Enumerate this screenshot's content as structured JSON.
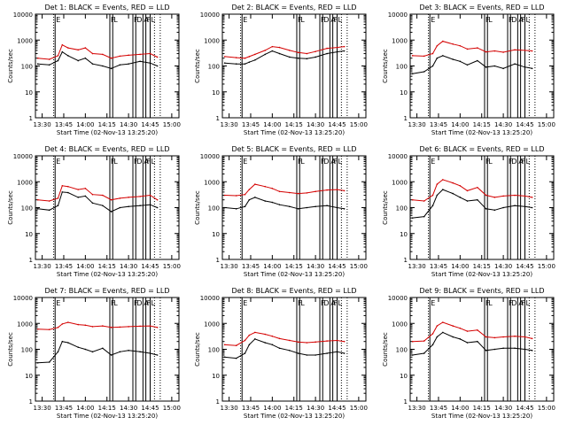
{
  "colors": {
    "events": "#000000",
    "lld": "#d40000",
    "background": "#ffffff",
    "axes": "#000000"
  },
  "x_ticks": [
    "13:30",
    "13:45",
    "14:00",
    "14:15",
    "14:30",
    "14:45",
    "15:00"
  ],
  "x_label": "Start Time (02-Nov-13 13:25:20)",
  "y_label": "Counts/sec",
  "y_ticks": [
    "1",
    "10",
    "100",
    "1000",
    "10000"
  ],
  "flag_labels": [
    "E",
    "F",
    "L",
    "F",
    "D",
    "A",
    "F",
    "L"
  ],
  "chart_data": [
    {
      "type": "line",
      "title": "Det 1: BLACK = Events, RED = LLD",
      "scale": "log",
      "ylim": [
        1,
        10000
      ],
      "x": [
        "13:27",
        "13:35",
        "13:41",
        "13:44",
        "13:48",
        "13:55",
        "14:00",
        "14:05",
        "14:12",
        "14:18",
        "14:24",
        "14:30",
        "14:38",
        "14:45",
        "14:50"
      ],
      "series": [
        {
          "name": "Events",
          "values": [
            120,
            110,
            160,
            350,
            250,
            160,
            200,
            120,
            100,
            80,
            110,
            120,
            150,
            130,
            100
          ]
        },
        {
          "name": "LLD",
          "values": [
            200,
            180,
            250,
            650,
            500,
            420,
            500,
            300,
            280,
            200,
            240,
            260,
            280,
            300,
            220
          ]
        }
      ]
    },
    {
      "type": "line",
      "title": "Det 2: BLACK = Events, RED = LLD",
      "scale": "log",
      "ylim": [
        1,
        10000
      ],
      "x": [
        "13:27",
        "13:35",
        "13:41",
        "13:44",
        "13:48",
        "13:55",
        "14:00",
        "14:05",
        "14:12",
        "14:18",
        "14:24",
        "14:30",
        "14:38",
        "14:45",
        "14:50"
      ],
      "series": [
        {
          "name": "Events",
          "values": [
            130,
            120,
            120,
            140,
            170,
            280,
            380,
            300,
            220,
            200,
            190,
            220,
            300,
            350,
            380
          ]
        },
        {
          "name": "LLD",
          "values": [
            230,
            210,
            200,
            230,
            280,
            400,
            560,
            520,
            400,
            330,
            300,
            360,
            480,
            520,
            560
          ]
        }
      ]
    },
    {
      "type": "line",
      "title": "Det 3: BLACK = Events, RED = LLD",
      "scale": "log",
      "ylim": [
        1,
        10000
      ],
      "x": [
        "13:27",
        "13:35",
        "13:41",
        "13:44",
        "13:48",
        "13:55",
        "14:00",
        "14:05",
        "14:12",
        "14:18",
        "14:24",
        "14:30",
        "14:38",
        "14:45",
        "14:50"
      ],
      "series": [
        {
          "name": "Events",
          "values": [
            50,
            60,
            100,
            200,
            250,
            180,
            150,
            110,
            160,
            90,
            100,
            80,
            120,
            90,
            80
          ]
        },
        {
          "name": "LLD",
          "values": [
            250,
            240,
            300,
            600,
            900,
            700,
            600,
            450,
            500,
            350,
            380,
            340,
            420,
            400,
            380
          ]
        }
      ]
    },
    {
      "type": "line",
      "title": "Det 4: BLACK = Events, RED = LLD",
      "scale": "log",
      "ylim": [
        1,
        10000
      ],
      "x": [
        "13:27",
        "13:35",
        "13:41",
        "13:44",
        "13:48",
        "13:55",
        "14:00",
        "14:05",
        "14:12",
        "14:18",
        "14:24",
        "14:30",
        "14:38",
        "14:45",
        "14:50"
      ],
      "series": [
        {
          "name": "Events",
          "values": [
            90,
            80,
            120,
            400,
            380,
            250,
            280,
            150,
            120,
            70,
            100,
            110,
            120,
            130,
            100
          ]
        },
        {
          "name": "LLD",
          "values": [
            200,
            180,
            230,
            700,
            650,
            500,
            550,
            320,
            300,
            200,
            230,
            250,
            270,
            300,
            200
          ]
        }
      ]
    },
    {
      "type": "line",
      "title": "Det 5: BLACK = Events, RED = LLD",
      "scale": "log",
      "ylim": [
        1,
        10000
      ],
      "x": [
        "13:27",
        "13:35",
        "13:41",
        "13:44",
        "13:48",
        "13:55",
        "14:00",
        "14:05",
        "14:12",
        "14:18",
        "14:24",
        "14:30",
        "14:38",
        "14:45",
        "14:50"
      ],
      "series": [
        {
          "name": "Events",
          "values": [
            100,
            90,
            110,
            200,
            250,
            180,
            160,
            130,
            110,
            90,
            100,
            110,
            120,
            100,
            90
          ]
        },
        {
          "name": "LLD",
          "values": [
            300,
            290,
            320,
            500,
            800,
            650,
            550,
            420,
            380,
            350,
            370,
            420,
            480,
            500,
            450
          ]
        }
      ]
    },
    {
      "type": "line",
      "title": "Det 6: BLACK = Events, RED = LLD",
      "scale": "log",
      "ylim": [
        1,
        10000
      ],
      "x": [
        "13:27",
        "13:35",
        "13:41",
        "13:44",
        "13:48",
        "13:55",
        "14:00",
        "14:05",
        "14:12",
        "14:18",
        "14:24",
        "14:30",
        "14:38",
        "14:45",
        "14:50"
      ],
      "series": [
        {
          "name": "Events",
          "values": [
            40,
            45,
            120,
            300,
            500,
            350,
            250,
            180,
            200,
            90,
            80,
            100,
            120,
            110,
            100
          ]
        },
        {
          "name": "LLD",
          "values": [
            200,
            180,
            300,
            800,
            1200,
            900,
            700,
            450,
            600,
            300,
            250,
            280,
            300,
            280,
            250
          ]
        }
      ]
    },
    {
      "type": "line",
      "title": "Det 7: BLACK = Events, RED = LLD",
      "scale": "log",
      "ylim": [
        1,
        10000
      ],
      "x": [
        "13:27",
        "13:35",
        "13:41",
        "13:44",
        "13:48",
        "13:55",
        "14:00",
        "14:05",
        "14:12",
        "14:18",
        "14:24",
        "14:30",
        "14:38",
        "14:45",
        "14:50"
      ],
      "series": [
        {
          "name": "Events",
          "values": [
            30,
            32,
            80,
            200,
            180,
            120,
            100,
            80,
            110,
            60,
            80,
            90,
            80,
            70,
            60
          ]
        },
        {
          "name": "LLD",
          "values": [
            600,
            580,
            700,
            950,
            1100,
            900,
            850,
            750,
            800,
            700,
            720,
            750,
            780,
            800,
            700
          ]
        }
      ]
    },
    {
      "type": "line",
      "title": "Det 8: BLACK = Events, RED = LLD",
      "scale": "log",
      "ylim": [
        1,
        10000
      ],
      "x": [
        "13:27",
        "13:35",
        "13:41",
        "13:44",
        "13:48",
        "13:55",
        "14:00",
        "14:05",
        "14:12",
        "14:18",
        "14:24",
        "14:30",
        "14:38",
        "14:45",
        "14:50"
      ],
      "series": [
        {
          "name": "Events",
          "values": [
            50,
            45,
            70,
            150,
            250,
            180,
            150,
            110,
            90,
            70,
            60,
            60,
            70,
            80,
            70
          ]
        },
        {
          "name": "LLD",
          "values": [
            150,
            140,
            220,
            350,
            450,
            380,
            320,
            260,
            220,
            190,
            180,
            190,
            210,
            220,
            200
          ]
        }
      ]
    },
    {
      "type": "line",
      "title": "Det 9: BLACK = Events, RED = LLD",
      "scale": "log",
      "ylim": [
        1,
        10000
      ],
      "x": [
        "13:27",
        "13:35",
        "13:41",
        "13:44",
        "13:48",
        "13:55",
        "14:00",
        "14:05",
        "14:12",
        "14:18",
        "14:24",
        "14:30",
        "14:38",
        "14:45",
        "14:50"
      ],
      "series": [
        {
          "name": "Events",
          "values": [
            60,
            70,
            150,
            300,
            450,
            300,
            250,
            180,
            200,
            90,
            100,
            110,
            110,
            100,
            90
          ]
        },
        {
          "name": "LLD",
          "values": [
            200,
            210,
            400,
            800,
            1100,
            800,
            650,
            500,
            550,
            300,
            280,
            300,
            320,
            300,
            260
          ]
        }
      ]
    }
  ]
}
